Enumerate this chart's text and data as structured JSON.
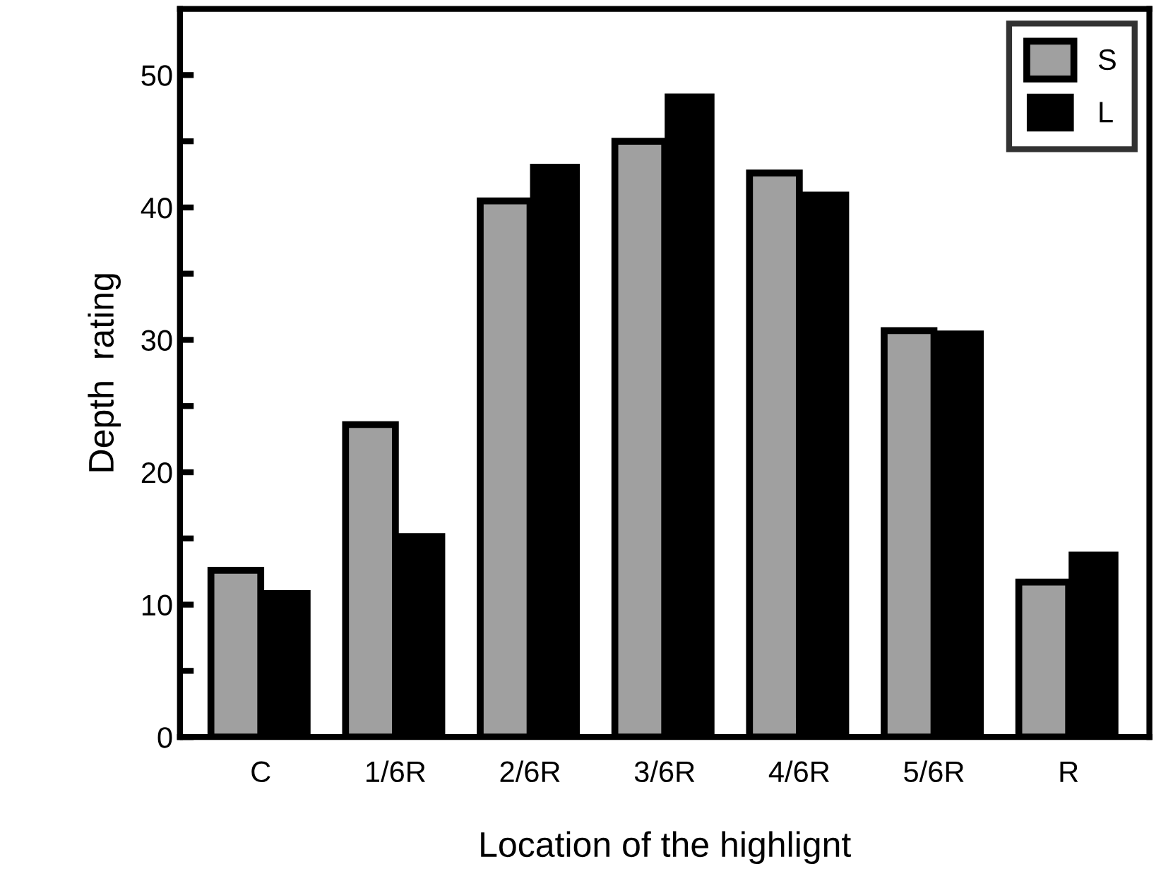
{
  "chart_data": {
    "type": "bar",
    "xlabel": "Location of the highlignt",
    "ylabel": "Depth  rating",
    "categories": [
      "C",
      "1/6R",
      "2/6R",
      "3/6R",
      "4/6R",
      "5/6R",
      "R"
    ],
    "series": [
      {
        "name": "S",
        "color": "#a0a0a0",
        "values": [
          12.6,
          23.6,
          40.5,
          45.0,
          42.6,
          30.7,
          11.7
        ]
      },
      {
        "name": "L",
        "color": "#000000",
        "values": [
          11.1,
          15.4,
          43.3,
          48.6,
          41.2,
          30.7,
          14.0
        ]
      }
    ],
    "ylim": [
      0,
      55
    ],
    "yticks": [
      0,
      {
        "value": 5,
        "label": null
      },
      10,
      {
        "value": 15,
        "label": null
      },
      20,
      {
        "value": 25,
        "label": null
      },
      30,
      {
        "value": 35,
        "label": null
      },
      40,
      {
        "value": 45,
        "label": null
      },
      50
    ],
    "grid": false,
    "legend": "top right"
  }
}
